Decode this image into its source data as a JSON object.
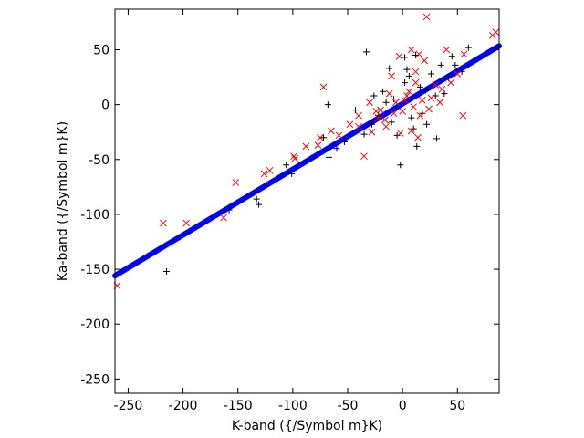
{
  "chart_data": {
    "type": "scatter",
    "title": "",
    "xlabel": "K-band ({/Symbol m}K)",
    "ylabel": "Ka-band ({/Symbol m}K)",
    "xlim": [
      -262,
      88
    ],
    "ylim": [
      -263,
      87
    ],
    "xticks": [
      -250,
      -200,
      -150,
      -100,
      -50,
      0,
      50
    ],
    "yticks": [
      -250,
      -200,
      -150,
      -100,
      -50,
      0,
      50
    ],
    "grid": false,
    "legend": "none",
    "series": [
      {
        "marker": "line",
        "color": "#0000ff",
        "fit": {
          "slope": 0.598,
          "intercept": 0.8,
          "x_range": [
            -262,
            88
          ]
        }
      },
      {
        "marker": "+",
        "color": "#000000",
        "points": [
          [
            -215,
            -152
          ],
          [
            -131,
            -91
          ],
          [
            -133,
            -86
          ],
          [
            -158,
            -96
          ],
          [
            -106,
            -55
          ],
          [
            -101,
            -63
          ],
          [
            -67,
            -48
          ],
          [
            -60,
            -40
          ],
          [
            -72,
            -30
          ],
          [
            -53,
            -34
          ],
          [
            -33,
            48
          ],
          [
            -12,
            33
          ],
          [
            2,
            43
          ],
          [
            12,
            45
          ],
          [
            35,
            36
          ],
          [
            60,
            52
          ],
          [
            45,
            44
          ],
          [
            -2,
            -55
          ],
          [
            13,
            -38
          ],
          [
            31,
            -31
          ],
          [
            -68,
            0
          ],
          [
            -43,
            -5
          ],
          [
            -22,
            -10
          ],
          [
            -26,
            8
          ],
          [
            -18,
            12
          ],
          [
            -8,
            5
          ],
          [
            2,
            20
          ],
          [
            6,
            26
          ],
          [
            16,
            16
          ],
          [
            21,
            13
          ],
          [
            26,
            28
          ],
          [
            42,
            24
          ],
          [
            54,
            30
          ],
          [
            10,
            -22
          ],
          [
            -5,
            -28
          ],
          [
            18,
            -8
          ],
          [
            -28,
            -18
          ],
          [
            -35,
            -27
          ],
          [
            30,
            8
          ],
          [
            38,
            10
          ],
          [
            -15,
            2
          ],
          [
            8,
            -12
          ],
          [
            22,
            -18
          ],
          [
            -10,
            -16
          ],
          [
            4,
            32
          ],
          [
            48,
            36
          ]
        ]
      },
      {
        "marker": "x",
        "color": "#ff0000",
        "points": [
          [
            -260,
            -165
          ],
          [
            -218,
            -108
          ],
          [
            -197,
            -108
          ],
          [
            -163,
            -103
          ],
          [
            -152,
            -71
          ],
          [
            -126,
            -63
          ],
          [
            -121,
            -60
          ],
          [
            -99,
            -47
          ],
          [
            -98,
            -49
          ],
          [
            -88,
            -38
          ],
          [
            -77,
            -37
          ],
          [
            -75,
            -30
          ],
          [
            -72,
            16
          ],
          [
            -65,
            -24
          ],
          [
            -58,
            -28
          ],
          [
            -48,
            -18
          ],
          [
            -40,
            -20
          ],
          [
            -35,
            -47
          ],
          [
            -28,
            -25
          ],
          [
            -22,
            -12
          ],
          [
            -15,
            -20
          ],
          [
            -2,
            -26
          ],
          [
            8,
            -24
          ],
          [
            14,
            -30
          ],
          [
            22,
            80
          ],
          [
            15,
            46
          ],
          [
            20,
            40
          ],
          [
            40,
            50
          ],
          [
            56,
            46
          ],
          [
            82,
            63
          ],
          [
            85,
            66
          ],
          [
            55,
            -10
          ],
          [
            8,
            50
          ],
          [
            -3,
            44
          ],
          [
            -30,
            2
          ],
          [
            -10,
            26
          ],
          [
            6,
            12
          ],
          [
            12,
            20
          ],
          [
            -20,
            -5
          ],
          [
            -8,
            -8
          ],
          [
            18,
            4
          ],
          [
            26,
            6
          ],
          [
            30,
            18
          ],
          [
            36,
            14
          ],
          [
            44,
            20
          ],
          [
            -12,
            10
          ],
          [
            0,
            -6
          ],
          [
            4,
            8
          ],
          [
            10,
            -2
          ],
          [
            -6,
            2
          ],
          [
            2,
            4
          ],
          [
            16,
            -10
          ],
          [
            24,
            -4
          ],
          [
            34,
            2
          ],
          [
            -16,
            -14
          ],
          [
            -24,
            -6
          ],
          [
            50,
            28
          ],
          [
            -40,
            -10
          ],
          [
            12,
            30
          ]
        ]
      }
    ]
  }
}
